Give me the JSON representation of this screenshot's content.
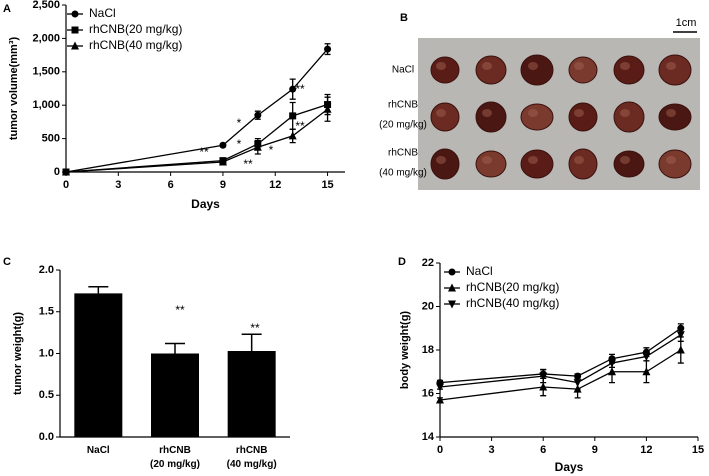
{
  "chart_data": [
    {
      "type": "line",
      "panel": "A",
      "xlabel": "Days",
      "ylabel": "tumor volume(mm³)",
      "x": [
        0,
        9,
        11,
        13,
        15
      ],
      "xlim": [
        0,
        16
      ],
      "xticks": [
        0,
        3,
        6,
        9,
        12,
        15
      ],
      "ylim": [
        0,
        2500
      ],
      "yticks": [
        0,
        500,
        {
          "value": 1000,
          "label": "1,000"
        },
        {
          "value": 1500,
          "label": "1,500"
        },
        {
          "value": 2000,
          "label": "2,000"
        },
        {
          "value": 2500,
          "label": "2,500"
        }
      ],
      "series": [
        {
          "name": "NaCl",
          "color": "#000000",
          "marker": "circle",
          "values": [
            0,
            400,
            850,
            1240,
            1840
          ],
          "errors": [
            0,
            20,
            60,
            150,
            80
          ]
        },
        {
          "name": "rhCNB(20 mg/kg)",
          "color": "#000000",
          "marker": "square",
          "values": [
            0,
            170,
            420,
            840,
            1010
          ],
          "errors": [
            0,
            20,
            80,
            200,
            150
          ]
        },
        {
          "name": "rhCNB(40 mg/kg)",
          "color": "#000000",
          "marker": "triangle",
          "values": [
            0,
            150,
            370,
            540,
            940
          ],
          "errors": [
            0,
            20,
            100,
            100,
            180
          ]
        }
      ],
      "annotations": [
        "**",
        "**",
        "*",
        "*",
        "*",
        "**",
        "**"
      ]
    },
    {
      "type": "bar",
      "panel": "C",
      "ylabel": "tumor weight(g)",
      "categories": [
        "NaCl",
        "rhCNB\n(20 mg/kg)",
        "rhCNB\n(40 mg/kg)"
      ],
      "values": [
        1.72,
        1.0,
        1.03
      ],
      "errors": [
        0.08,
        0.12,
        0.2
      ],
      "color": "#000000",
      "ylim": [
        0,
        2
      ],
      "yticks": [
        {
          "value": 0,
          "label": "0.0"
        },
        0.5,
        {
          "value": 1,
          "label": "1.0"
        },
        1.5,
        {
          "value": 2,
          "label": "2.0"
        }
      ],
      "annotations": [
        "**",
        "**"
      ]
    },
    {
      "type": "line",
      "panel": "D",
      "xlabel": "Days",
      "ylabel": "body weight(g)",
      "x": [
        0,
        6,
        8,
        10,
        12,
        14
      ],
      "xlim": [
        0,
        15
      ],
      "xticks": [
        0,
        3,
        6,
        9,
        12,
        15
      ],
      "ylim": [
        14,
        22
      ],
      "yticks": [
        14,
        16,
        18,
        20,
        22
      ],
      "series": [
        {
          "name": "NaCl",
          "color": "#000000",
          "marker": "circle",
          "values": [
            16.5,
            16.9,
            16.8,
            17.6,
            17.9,
            19.0
          ],
          "errors": [
            0.1,
            0.2,
            0.1,
            0.2,
            0.2,
            0.2
          ]
        },
        {
          "name": "rhCNB(20 mg/kg)",
          "color": "#000000",
          "marker": "triangle",
          "values": [
            15.7,
            16.3,
            16.2,
            17.0,
            17.0,
            18.0
          ],
          "errors": [
            0.1,
            0.4,
            0.4,
            0.5,
            0.5,
            0.6
          ]
        },
        {
          "name": "rhCNB(40 mg/kg)",
          "color": "#000000",
          "marker": "triangledown",
          "values": [
            16.3,
            16.8,
            16.5,
            17.4,
            17.7,
            18.7
          ],
          "errors": [
            0.1,
            0.3,
            0.3,
            0.2,
            0.2,
            0.3
          ]
        }
      ]
    }
  ],
  "photo": {
    "panel": "B",
    "scale_bar": "1cm",
    "row_labels": [
      "NaCl",
      "rhCNB",
      "(20 mg/kg)",
      "rhCNB",
      "(40 mg/kg)"
    ]
  }
}
